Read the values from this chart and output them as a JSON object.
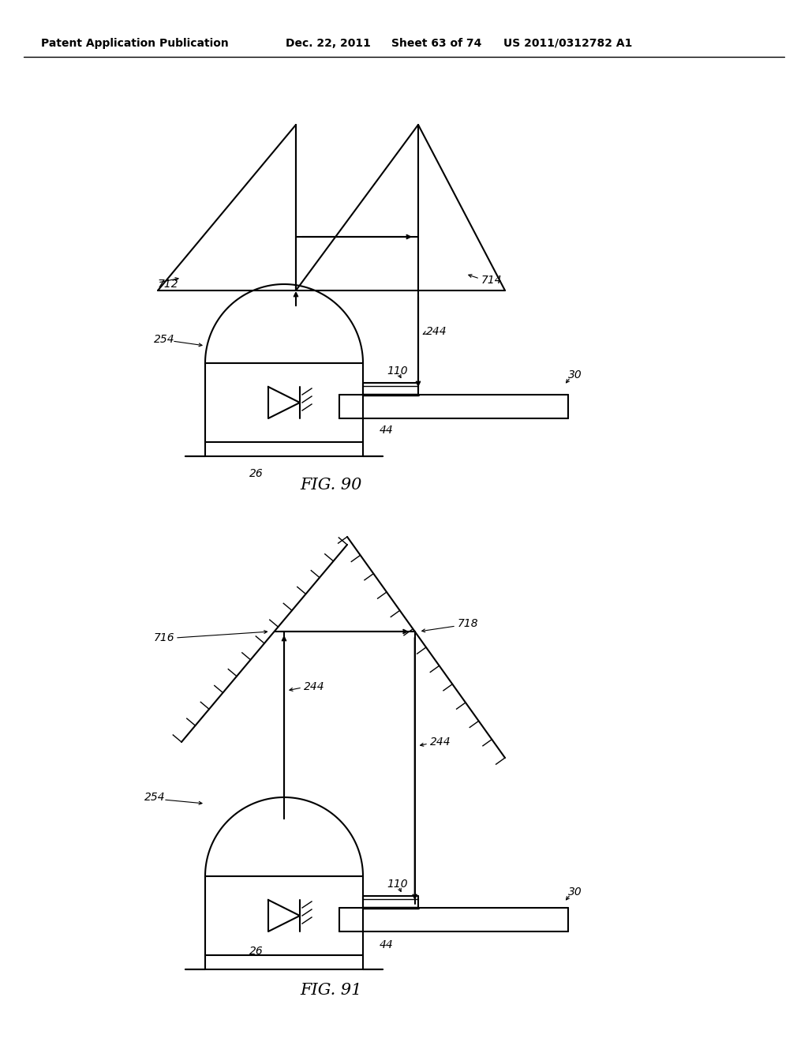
{
  "bg_color": "#ffffff",
  "line_color": "#000000",
  "line_width": 1.5,
  "header_left": "Patent Application Publication",
  "header_mid1": "Dec. 22, 2011",
  "header_mid2": "Sheet 63 of 74",
  "header_right": "US 2011/0312782 A1",
  "fig90_label": "FIG. 90",
  "fig91_label": "FIG. 91"
}
